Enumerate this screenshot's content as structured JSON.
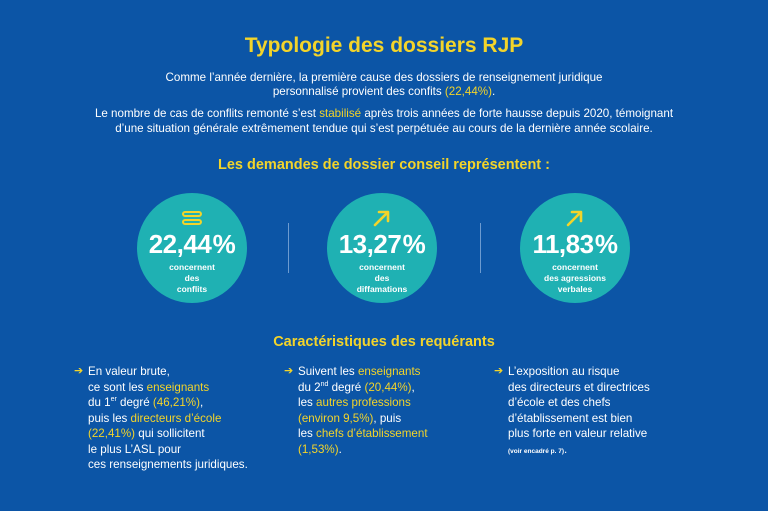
{
  "title": "Typologie des dossiers RJP",
  "intro": {
    "p1_line1": "Comme l’année dernière, la première cause des dossiers de renseignement juridique",
    "p1_line2_a": "personnalisé provient des confits ",
    "p1_line2_b": "(22,44%)",
    "p1_line2_c": ".",
    "p2_line1_a": "Le nombre de cas de conflits remonté s’est ",
    "p2_line1_b": "stabilisé",
    "p2_line1_c": " après trois années de forte hausse depuis 2020, témoignant",
    "p2_line2": "d’une situation générale extrêmement tendue qui s’est perpétuée au cours de la dernière année scolaire."
  },
  "subtitle": "Les demandes de dossier conseil représentent :",
  "stats": [
    {
      "icon": "equals-icon",
      "value": "22,44",
      "unit": "%",
      "label1": "concernent",
      "label2": "des",
      "label3": "conflits"
    },
    {
      "icon": "arrow-up-right-icon",
      "value": "13,27",
      "unit": "%",
      "label1": "concernent",
      "label2": "des",
      "label3": "diffamations"
    },
    {
      "icon": "arrow-up-right-icon",
      "value": "11,83",
      "unit": "%",
      "label1": "concernent",
      "label2": "des agressions",
      "label3": "verbales"
    }
  ],
  "section_title": "Caractéristiques des requérants",
  "col1": {
    "l1": "En valeur brute,",
    "l2a": "ce sont les ",
    "l2b": "enseignants",
    "l3a": "du 1",
    "l3sup": "er",
    "l3b": " degré ",
    "l3c": "(46,21%)",
    "l3d": ",",
    "l4a": "puis les ",
    "l4b": "directeurs d’école",
    "l5a": "(22,41%)",
    "l5b": " qui sollicitent",
    "l6": "le plus L’ASL pour",
    "l7": "ces renseignements juridiques."
  },
  "col2": {
    "l1a": "Suivent les ",
    "l1b": "enseignants",
    "l2a": "du 2",
    "l2sup": "nd",
    "l2b": " degré ",
    "l2c": "(20,44%)",
    "l2d": ",",
    "l3a": "les ",
    "l3b": "autres professions",
    "l4a": "(environ 9,5%)",
    "l4b": ", puis",
    "l5a": "les ",
    "l5b": "chefs d’établissement",
    "l6a": "(1,53%)",
    "l6b": "."
  },
  "col3": {
    "l1": "L’exposition au risque",
    "l2": "des directeurs et directrices",
    "l3": "d’école et des chefs",
    "l4": "d’établissement est bien",
    "l5": "plus forte en valeur relative",
    "l6a": "(voir encadré p. 7)",
    "l6b": "."
  },
  "colors": {
    "background": "#0c55a6",
    "accent": "#f3d42a",
    "circle": "#1fb1b3"
  }
}
